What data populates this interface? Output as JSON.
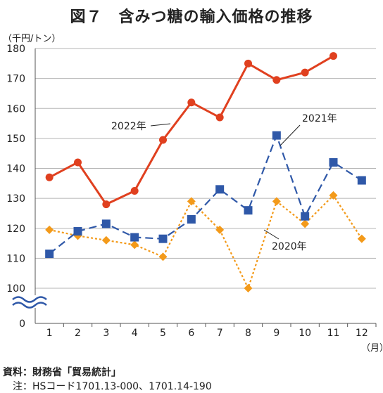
{
  "title": "図７　含みつ糖の輸入価格の推移",
  "unit_label": "（千円/トン）",
  "x_unit_label": "（月）",
  "source": "資料：財務省「貿易統計」",
  "note": "　注：HSコード1701.13-000、1701.14-190",
  "chart_data": {
    "type": "line",
    "categories": [
      "1",
      "2",
      "3",
      "4",
      "5",
      "6",
      "7",
      "8",
      "9",
      "10",
      "11",
      "12"
    ],
    "y_ticks": [
      "0",
      "100",
      "110",
      "120",
      "130",
      "140",
      "150",
      "160",
      "170",
      "180"
    ],
    "ylim": [
      100,
      180
    ],
    "axis_break": true,
    "grid": true,
    "series": [
      {
        "name": "2022年",
        "color": "#e0401f",
        "marker": "circle",
        "dash": "solid",
        "values": [
          137,
          142,
          128,
          132.5,
          149.5,
          162,
          157,
          175,
          169.5,
          172,
          177.5,
          null
        ]
      },
      {
        "name": "2021年",
        "color": "#2f58a8",
        "marker": "square",
        "dash": "long-dash",
        "values": [
          111.5,
          119,
          121.5,
          117,
          116.5,
          123,
          133,
          126,
          151,
          124,
          142,
          136
        ]
      },
      {
        "name": "2020年",
        "color": "#f39a1a",
        "marker": "diamond",
        "dash": "dot",
        "values": [
          119.5,
          117.5,
          116,
          114.5,
          110.5,
          129,
          119.5,
          100,
          129,
          121.5,
          131,
          116.5
        ]
      }
    ]
  }
}
